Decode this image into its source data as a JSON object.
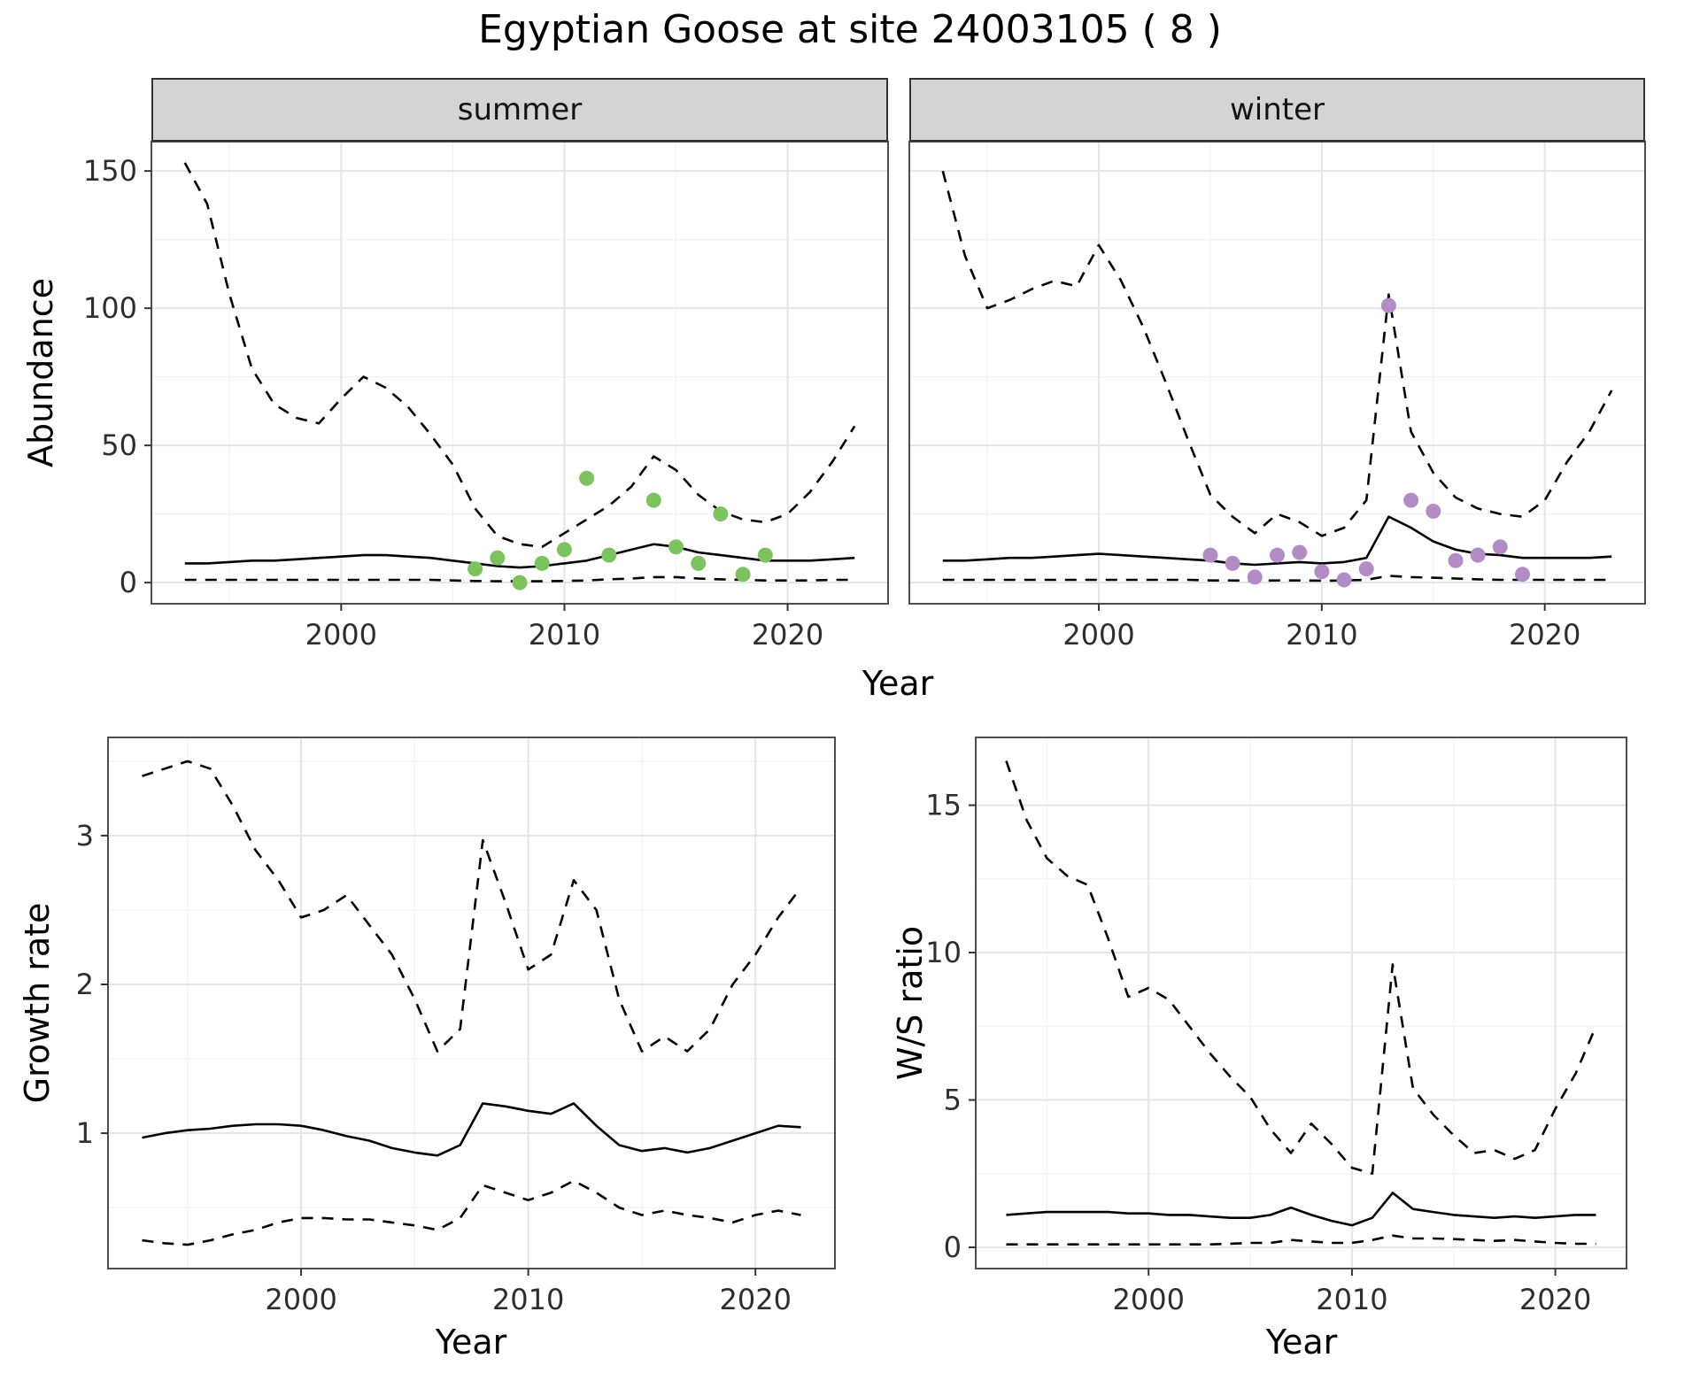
{
  "title": "Egyptian Goose at site 24003105 ( 8 )",
  "facets": {
    "summer": "summer",
    "winter": "winter"
  },
  "axis_titles": {
    "abundance": "Abundance",
    "year": "Year",
    "growth_rate": "Growth rate",
    "ws_ratio": "W/S ratio"
  },
  "theme": {
    "strip_bg": "#d4d4d4",
    "grid_major": "#e5e5e5",
    "grid_minor": "#f2f2f2",
    "panel_border": "#4d4d4d",
    "tick_color": "#333333",
    "line_color": "#000000",
    "summer_point_color": "#7cc25e",
    "winter_point_color": "#b38cc6"
  },
  "chart_data": [
    {
      "id": "abundance-summer",
      "type": "line",
      "facet": "summer",
      "ylabel": "Abundance",
      "xlabel": "Year",
      "xlim": [
        1991.5,
        2024.5
      ],
      "ylim": [
        -7.7,
        160.7
      ],
      "xticks": [
        2000,
        2010,
        2020
      ],
      "yticks": [
        0,
        50,
        100,
        150
      ],
      "xticks_minor": [
        1995,
        2005,
        2015
      ],
      "yticks_minor": [
        25,
        75,
        125
      ],
      "x": [
        1993,
        1994,
        1995,
        1996,
        1997,
        1998,
        1999,
        2000,
        2001,
        2002,
        2003,
        2004,
        2005,
        2006,
        2007,
        2008,
        2009,
        2010,
        2011,
        2012,
        2013,
        2014,
        2015,
        2016,
        2017,
        2018,
        2019,
        2020,
        2021,
        2022,
        2023
      ],
      "series": [
        {
          "name": "upper-ci",
          "style": "dashed",
          "values": [
            153,
            138,
            105,
            78,
            65,
            60,
            58,
            67,
            75,
            71,
            64,
            54,
            43,
            27,
            17,
            14,
            13,
            18,
            23,
            28,
            35,
            46,
            41,
            32,
            26,
            23,
            22,
            25,
            33,
            44,
            57
          ]
        },
        {
          "name": "mean",
          "style": "solid",
          "values": [
            7,
            7,
            7.5,
            8,
            8,
            8.5,
            9,
            9.5,
            10,
            10,
            9.5,
            9,
            8,
            7,
            6,
            5.5,
            6,
            7,
            8,
            10,
            12,
            14,
            13,
            11,
            10,
            9,
            8,
            8,
            8,
            8.5,
            9
          ]
        },
        {
          "name": "lower-ci",
          "style": "dashed",
          "values": [
            1,
            1,
            1,
            1,
            1,
            1,
            1,
            1,
            1,
            1,
            1,
            1,
            0.8,
            0.6,
            0.5,
            0.5,
            0.5,
            0.6,
            0.8,
            1.2,
            1.5,
            2,
            2,
            1.5,
            1.2,
            1,
            0.8,
            0.8,
            0.8,
            1,
            1
          ]
        },
        {
          "name": "observed-counts",
          "style": "points",
          "color": "#7cc25e",
          "x": [
            2006,
            2007,
            2008,
            2009,
            2010,
            2011,
            2012,
            2014,
            2015,
            2016,
            2017,
            2018,
            2019
          ],
          "values": [
            5,
            9,
            0,
            7,
            12,
            38,
            10,
            30,
            13,
            7,
            25,
            3,
            10
          ]
        }
      ]
    },
    {
      "id": "abundance-winter",
      "type": "line",
      "facet": "winter",
      "ylabel": "Abundance",
      "xlabel": "Year",
      "xlim": [
        1991.5,
        2024.5
      ],
      "ylim": [
        -7.7,
        160.7
      ],
      "xticks": [
        2000,
        2010,
        2020
      ],
      "yticks": [
        0,
        50,
        100,
        150
      ],
      "xticks_minor": [
        1995,
        2005,
        2015
      ],
      "yticks_minor": [
        25,
        75,
        125
      ],
      "x": [
        1993,
        1994,
        1995,
        1996,
        1997,
        1998,
        1999,
        2000,
        2001,
        2002,
        2003,
        2004,
        2005,
        2006,
        2007,
        2008,
        2009,
        2010,
        2011,
        2012,
        2013,
        2014,
        2015,
        2016,
        2017,
        2018,
        2019,
        2020,
        2021,
        2022,
        2023
      ],
      "series": [
        {
          "name": "upper-ci",
          "style": "dashed",
          "values": [
            150,
            119,
            100,
            103,
            107,
            110,
            108,
            123,
            110,
            93,
            73,
            52,
            32,
            24,
            18,
            25,
            22,
            17,
            20,
            30,
            105,
            55,
            40,
            31,
            27,
            25,
            24,
            30,
            44,
            55,
            70
          ]
        },
        {
          "name": "mean",
          "style": "solid",
          "values": [
            8,
            8,
            8.5,
            9,
            9,
            9.5,
            10,
            10.5,
            10,
            9.5,
            9,
            8.5,
            8,
            7,
            6.5,
            7,
            7.5,
            7,
            7.5,
            9,
            24,
            20,
            15,
            12,
            10.5,
            10,
            9,
            9,
            9,
            9,
            9.5
          ]
        },
        {
          "name": "lower-ci",
          "style": "dashed",
          "values": [
            1,
            1,
            1,
            1,
            1,
            1,
            1,
            1,
            1,
            1,
            1,
            1,
            0.8,
            0.8,
            0.7,
            0.8,
            0.8,
            0.7,
            0.8,
            1,
            2.5,
            2,
            1.8,
            1.5,
            1.2,
            1,
            1,
            1,
            1,
            1,
            1
          ]
        },
        {
          "name": "observed-counts",
          "style": "points",
          "color": "#b38cc6",
          "x": [
            2005,
            2006,
            2007,
            2008,
            2009,
            2010,
            2011,
            2012,
            2013,
            2014,
            2015,
            2016,
            2017,
            2018,
            2019
          ],
          "values": [
            10,
            7,
            2,
            10,
            11,
            4,
            1,
            5,
            101,
            30,
            26,
            8,
            10,
            13,
            3
          ]
        }
      ]
    },
    {
      "id": "growth-rate",
      "type": "line",
      "ylabel": "Growth rate",
      "xlabel": "Year",
      "xlim": [
        1991.5,
        2023.5
      ],
      "ylim": [
        0.09,
        3.66
      ],
      "xticks": [
        2000,
        2010,
        2020
      ],
      "yticks": [
        1,
        2,
        3
      ],
      "xticks_minor": [
        1995,
        2005,
        2015
      ],
      "yticks_minor": [
        0.5,
        1.5,
        2.5,
        3.5
      ],
      "x": [
        1993,
        1994,
        1995,
        1996,
        1997,
        1998,
        1999,
        2000,
        2001,
        2002,
        2003,
        2004,
        2005,
        2006,
        2007,
        2008,
        2009,
        2010,
        2011,
        2012,
        2013,
        2014,
        2015,
        2016,
        2017,
        2018,
        2019,
        2020,
        2021,
        2022
      ],
      "series": [
        {
          "name": "upper-ci",
          "style": "dashed",
          "values": [
            3.4,
            3.45,
            3.5,
            3.45,
            3.2,
            2.9,
            2.7,
            2.45,
            2.5,
            2.6,
            2.4,
            2.2,
            1.9,
            1.55,
            1.7,
            2.97,
            2.55,
            2.1,
            2.2,
            2.7,
            2.5,
            1.9,
            1.55,
            1.65,
            1.55,
            1.7,
            2.0,
            2.2,
            2.45,
            2.65
          ]
        },
        {
          "name": "mean",
          "style": "solid",
          "values": [
            0.97,
            1.0,
            1.02,
            1.03,
            1.05,
            1.06,
            1.06,
            1.05,
            1.02,
            0.98,
            0.95,
            0.9,
            0.87,
            0.85,
            0.92,
            1.2,
            1.18,
            1.15,
            1.13,
            1.2,
            1.05,
            0.92,
            0.88,
            0.9,
            0.87,
            0.9,
            0.95,
            1.0,
            1.05,
            1.04
          ]
        },
        {
          "name": "lower-ci",
          "style": "dashed",
          "values": [
            0.28,
            0.26,
            0.25,
            0.28,
            0.32,
            0.35,
            0.4,
            0.43,
            0.43,
            0.42,
            0.42,
            0.4,
            0.38,
            0.35,
            0.43,
            0.65,
            0.6,
            0.55,
            0.6,
            0.68,
            0.6,
            0.5,
            0.45,
            0.48,
            0.45,
            0.43,
            0.4,
            0.45,
            0.48,
            0.45
          ]
        }
      ]
    },
    {
      "id": "ws-ratio",
      "type": "line",
      "ylabel": "W/S ratio",
      "xlabel": "Year",
      "xlim": [
        1991.5,
        2023.5
      ],
      "ylim": [
        -0.72,
        17.3
      ],
      "xticks": [
        2000,
        2010,
        2020
      ],
      "yticks": [
        0,
        5,
        10,
        15
      ],
      "xticks_minor": [
        1995,
        2005,
        2015
      ],
      "yticks_minor": [
        2.5,
        7.5,
        12.5
      ],
      "x": [
        1993,
        1994,
        1995,
        1996,
        1997,
        1998,
        1999,
        2000,
        2001,
        2002,
        2003,
        2004,
        2005,
        2006,
        2007,
        2008,
        2009,
        2010,
        2011,
        2012,
        2013,
        2014,
        2015,
        2016,
        2017,
        2018,
        2019,
        2020,
        2021,
        2022
      ],
      "series": [
        {
          "name": "upper-ci",
          "style": "dashed",
          "values": [
            16.5,
            14.5,
            13.2,
            12.6,
            12.3,
            10.5,
            8.5,
            8.8,
            8.4,
            7.5,
            6.6,
            5.8,
            5.1,
            4.0,
            3.2,
            4.2,
            3.5,
            2.7,
            2.5,
            9.6,
            5.4,
            4.5,
            3.8,
            3.2,
            3.3,
            3.0,
            3.3,
            4.7,
            5.9,
            7.5
          ]
        },
        {
          "name": "mean",
          "style": "solid",
          "values": [
            1.1,
            1.15,
            1.2,
            1.2,
            1.2,
            1.2,
            1.15,
            1.15,
            1.1,
            1.1,
            1.05,
            1.0,
            1.0,
            1.1,
            1.35,
            1.1,
            0.9,
            0.75,
            1.0,
            1.85,
            1.3,
            1.2,
            1.1,
            1.05,
            1.0,
            1.05,
            1.0,
            1.05,
            1.1,
            1.1
          ]
        },
        {
          "name": "lower-ci",
          "style": "dashed",
          "values": [
            0.1,
            0.1,
            0.1,
            0.1,
            0.1,
            0.1,
            0.1,
            0.1,
            0.1,
            0.1,
            0.1,
            0.12,
            0.15,
            0.15,
            0.25,
            0.2,
            0.15,
            0.15,
            0.25,
            0.4,
            0.3,
            0.3,
            0.28,
            0.25,
            0.22,
            0.25,
            0.2,
            0.15,
            0.12,
            0.12
          ]
        }
      ]
    }
  ]
}
